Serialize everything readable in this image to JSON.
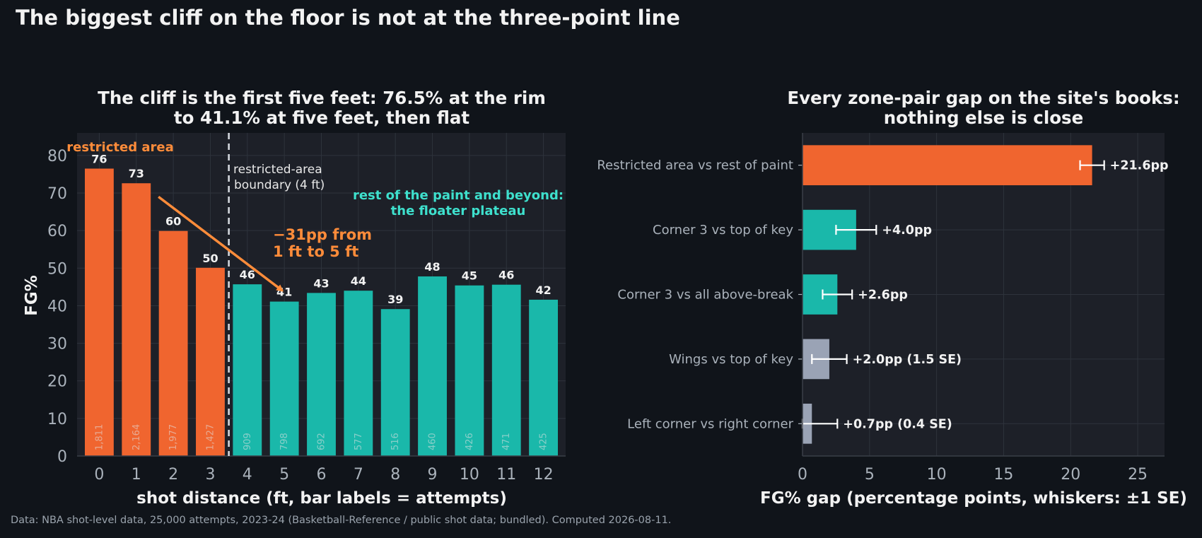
{
  "page": {
    "suptitle": "The biggest cliff on the floor is not at the three-point line",
    "footnote": "Data: NBA shot-level data, 25,000 attempts, 2023-24 (Basketball-Reference / public shot data; bundled). Computed 2026-08-11."
  },
  "colors": {
    "background": "#10141a",
    "panel": "#1d2028",
    "orange": "#f0652f",
    "teal": "#1ab8aa",
    "gray": "#9aa3b5",
    "annot_orange": "#ff8c3a",
    "annot_teal": "#3ee0cd"
  },
  "chart_data": [
    {
      "type": "bar",
      "title_lines": [
        "The cliff is the first five feet: 76.5% at the rim",
        "to 41.1% at five feet, then flat"
      ],
      "xlabel": "shot distance (ft, bar labels = attempts)",
      "ylabel": "FG%",
      "categories": [
        "0",
        "1",
        "2",
        "3",
        "4",
        "5",
        "6",
        "7",
        "8",
        "9",
        "10",
        "11",
        "12"
      ],
      "values": [
        76.5,
        72.6,
        59.9,
        50.1,
        45.7,
        41.1,
        43.4,
        44.0,
        39.1,
        47.8,
        45.4,
        45.6,
        41.6
      ],
      "value_labels": [
        "76",
        "73",
        "60",
        "50",
        "46",
        "41",
        "43",
        "44",
        "39",
        "48",
        "45",
        "46",
        "42"
      ],
      "attempts": [
        "1,811",
        "2,164",
        "1,977",
        "1,427",
        "909",
        "798",
        "692",
        "577",
        "516",
        "460",
        "426",
        "471",
        "425"
      ],
      "group": [
        "restricted",
        "restricted",
        "restricted",
        "restricted",
        "paint",
        "paint",
        "paint",
        "paint",
        "paint",
        "paint",
        "paint",
        "paint",
        "paint"
      ],
      "ylim": [
        0,
        86
      ],
      "xlim": [
        -0.6,
        12.6
      ],
      "yticks": [
        0,
        10,
        20,
        30,
        40,
        50,
        60,
        70,
        80
      ],
      "grid": true,
      "boundary_x": 3.5,
      "annotations": {
        "restricted_area": "restricted area",
        "boundary_line1": "restricted-area",
        "boundary_line2": "boundary (4 ft)",
        "plateau_line1": "rest of the paint and beyond:",
        "plateau_line2": "the floater plateau",
        "drop_line1": "−31pp from",
        "drop_line2": "1 ft to 5 ft",
        "arrow_from": [
          1.6,
          69
        ],
        "arrow_to": [
          4.95,
          44
        ]
      }
    },
    {
      "type": "bar",
      "orientation": "horizontal",
      "title_lines": [
        "Every zone-pair gap on the site's books:",
        "nothing else is close"
      ],
      "xlabel": "FG% gap (percentage points, whiskers: ±1 SE)",
      "categories": [
        "Restricted area vs rest of paint",
        "Corner 3 vs top of key",
        "Corner 3 vs all above-break",
        "Wings vs top of key",
        "Left corner vs right corner"
      ],
      "values": [
        21.6,
        4.0,
        2.6,
        2.0,
        0.7
      ],
      "se": [
        0.9,
        1.5,
        1.1,
        1.3,
        1.9
      ],
      "value_labels": [
        "+21.6pp",
        "+4.0pp",
        "+2.6pp",
        "+2.0pp (1.5 SE)",
        "+0.7pp (0.4 SE)"
      ],
      "bar_colors": [
        "orange",
        "teal",
        "teal",
        "gray",
        "gray"
      ],
      "xlim": [
        0,
        27
      ],
      "xticks": [
        0,
        5,
        10,
        15,
        20,
        25
      ],
      "grid": true
    }
  ]
}
